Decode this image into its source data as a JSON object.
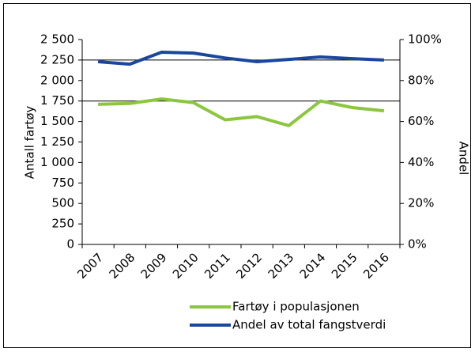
{
  "chart_data": {
    "type": "line",
    "categories": [
      "2007",
      "2008",
      "2009",
      "2010",
      "2011",
      "2012",
      "2013",
      "2014",
      "2015",
      "2016"
    ],
    "series": [
      {
        "name": "Fartøy i populasjonen",
        "color": "#8cc63f",
        "values": [
          1710,
          1720,
          1775,
          1730,
          1520,
          1560,
          1450,
          1750,
          1670,
          1630
        ]
      },
      {
        "name": "Andel av total fangstverdi",
        "color": "#1a469c",
        "axis": "y2",
        "values": [
          89.2,
          88,
          93.8,
          93.4,
          91,
          89.2,
          90.3,
          91.5,
          90.7,
          90
        ]
      }
    ],
    "ylabel": "Antall fartøy",
    "y2label": "Andel",
    "ylim": [
      0,
      2500
    ],
    "yticks": [
      0,
      250,
      500,
      750,
      {
        "value": 1000,
        "label": "1 000"
      },
      {
        "value": 1250,
        "label": "1 250"
      },
      {
        "value": 1500,
        "label": "1 500"
      },
      {
        "value": 1750,
        "label": "1 750"
      },
      {
        "value": 2000,
        "label": "2 000"
      },
      {
        "value": 2250,
        "label": "2 250"
      },
      {
        "value": 2500,
        "label": "2 500"
      }
    ],
    "y2lim": [
      0,
      100
    ],
    "y2ticks": [
      {
        "value": 0,
        "label": "0%"
      },
      {
        "value": 20,
        "label": "20%"
      },
      {
        "value": 40,
        "label": "40%"
      },
      {
        "value": 60,
        "label": "60%"
      },
      {
        "value": 80,
        "label": "80%"
      },
      {
        "value": 100,
        "label": "100%"
      }
    ],
    "gridlines": [
      1750,
      2250
    ],
    "legend": "bottom"
  }
}
